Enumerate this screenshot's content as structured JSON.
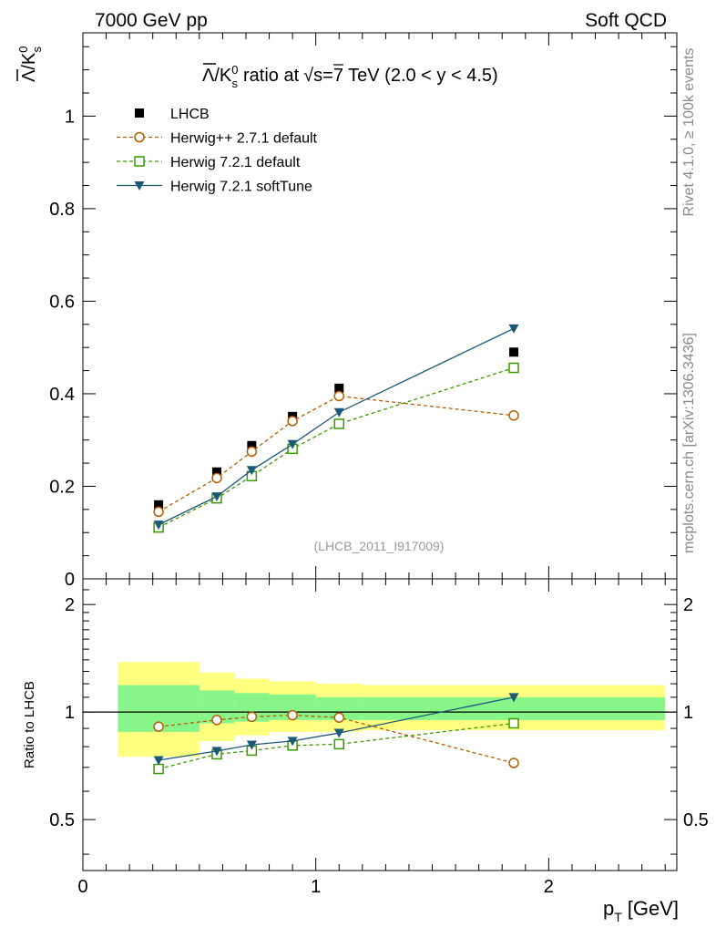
{
  "header": {
    "left": "7000 GeV pp",
    "right": "Soft QCD"
  },
  "side_labels": {
    "rivet": "Rivet 4.1.0, ≥ 100k events",
    "mcplots": "mcplots.cern.ch [arXiv:1306.3436]"
  },
  "chart_data": [
    {
      "type": "line",
      "title": "Λ̅/K⁰s ratio at √s=7 TeV (2.0 < y < 4.5)",
      "title_parts": {
        "lambda": "Λ",
        "slash_k": "/K",
        "k_sup": "0",
        "k_sub": "s",
        "rest": "ratio at",
        "rest2": "s=7 TeV (2.0 < y < 4.5)"
      },
      "ylabel_parts": {
        "lambda": "Λ",
        "slash_k": "/K",
        "k_sup": "0",
        "k_sub": "s"
      },
      "xlim": [
        0,
        2.55
      ],
      "ylim": [
        0,
        1.18
      ],
      "yticks": [
        0,
        0.2,
        0.4,
        0.6,
        0.8,
        1
      ],
      "ytick_labels": [
        "0",
        "0.2",
        "0.4",
        "0.6",
        "0.8",
        "1"
      ],
      "analysis_id": "(LHCB_2011_I917009)",
      "legend_position": "top-left",
      "series": [
        {
          "name": "LHCB",
          "style": "data",
          "color": "#000000",
          "x": [
            0.325,
            0.575,
            0.725,
            0.9,
            1.1,
            1.85
          ],
          "y": [
            0.16,
            0.231,
            0.288,
            0.351,
            0.412,
            0.49
          ]
        },
        {
          "name": "Herwig++ 2.7.1 default",
          "style": "circle-dashed",
          "color": "#b85c00",
          "x": [
            0.325,
            0.575,
            0.725,
            0.9,
            1.1,
            1.85
          ],
          "y": [
            0.145,
            0.218,
            0.275,
            0.341,
            0.395,
            0.353
          ]
        },
        {
          "name": "Herwig 7.2.1 default",
          "style": "square-dashed",
          "color": "#3a9a00",
          "x": [
            0.325,
            0.575,
            0.725,
            0.9,
            1.1,
            1.85
          ],
          "y": [
            0.111,
            0.174,
            0.222,
            0.281,
            0.335,
            0.456
          ]
        },
        {
          "name": "Herwig 7.2.1 softTune",
          "style": "triangle-solid",
          "color": "#1d5878",
          "x": [
            0.325,
            0.575,
            0.725,
            0.9,
            1.1,
            1.85
          ],
          "y": [
            0.117,
            0.178,
            0.235,
            0.291,
            0.36,
            0.541
          ]
        }
      ]
    },
    {
      "type": "line",
      "title": "",
      "xlabel": "p",
      "xlabel_sub": "T",
      "xlabel_unit": "[GeV]",
      "ylabel": "Ratio to LHCB",
      "xlim": [
        0,
        2.55
      ],
      "ylim": [
        0.36,
        2.36
      ],
      "yticks": [
        0.5,
        1,
        2
      ],
      "ytick_labels": [
        "0.5",
        "1",
        "2"
      ],
      "xticks": [
        0,
        1,
        2
      ],
      "xtick_labels": [
        "0",
        "1",
        "2"
      ],
      "reference_line": 1,
      "bins": [
        [
          0.15,
          0.5
        ],
        [
          0.5,
          0.65
        ],
        [
          0.65,
          0.8
        ],
        [
          0.8,
          1.0
        ],
        [
          1.0,
          1.2
        ],
        [
          1.2,
          2.5
        ]
      ],
      "band_outer": [
        [
          0.75,
          1.38
        ],
        [
          0.83,
          1.29
        ],
        [
          0.86,
          1.24
        ],
        [
          0.88,
          1.22
        ],
        [
          0.88,
          1.2
        ],
        [
          0.89,
          1.19
        ]
      ],
      "band_inner": [
        [
          0.88,
          1.19
        ],
        [
          0.93,
          1.15
        ],
        [
          0.94,
          1.13
        ],
        [
          0.95,
          1.12
        ],
        [
          0.95,
          1.1
        ],
        [
          0.95,
          1.1
        ]
      ],
      "band_colors": {
        "outer": "#ffff80",
        "inner": "#88f588"
      },
      "series": [
        {
          "name": "Herwig++ 2.7.1 default",
          "style": "circle-dashed",
          "color": "#b85c00",
          "x": [
            0.325,
            0.575,
            0.725,
            0.9,
            1.1,
            1.85
          ],
          "y": [
            0.91,
            0.95,
            0.97,
            0.98,
            0.965,
            0.72
          ]
        },
        {
          "name": "Herwig 7.2.1 default",
          "style": "square-dashed",
          "color": "#3a9a00",
          "x": [
            0.325,
            0.575,
            0.725,
            0.9,
            1.1,
            1.85
          ],
          "y": [
            0.693,
            0.762,
            0.78,
            0.806,
            0.813,
            0.93
          ]
        },
        {
          "name": "Herwig 7.2.1 softTune",
          "style": "triangle-solid",
          "color": "#1d5878",
          "x": [
            0.325,
            0.575,
            0.725,
            0.9,
            1.1,
            1.85
          ],
          "y": [
            0.733,
            0.778,
            0.81,
            0.83,
            0.874,
            1.1
          ]
        }
      ]
    }
  ]
}
